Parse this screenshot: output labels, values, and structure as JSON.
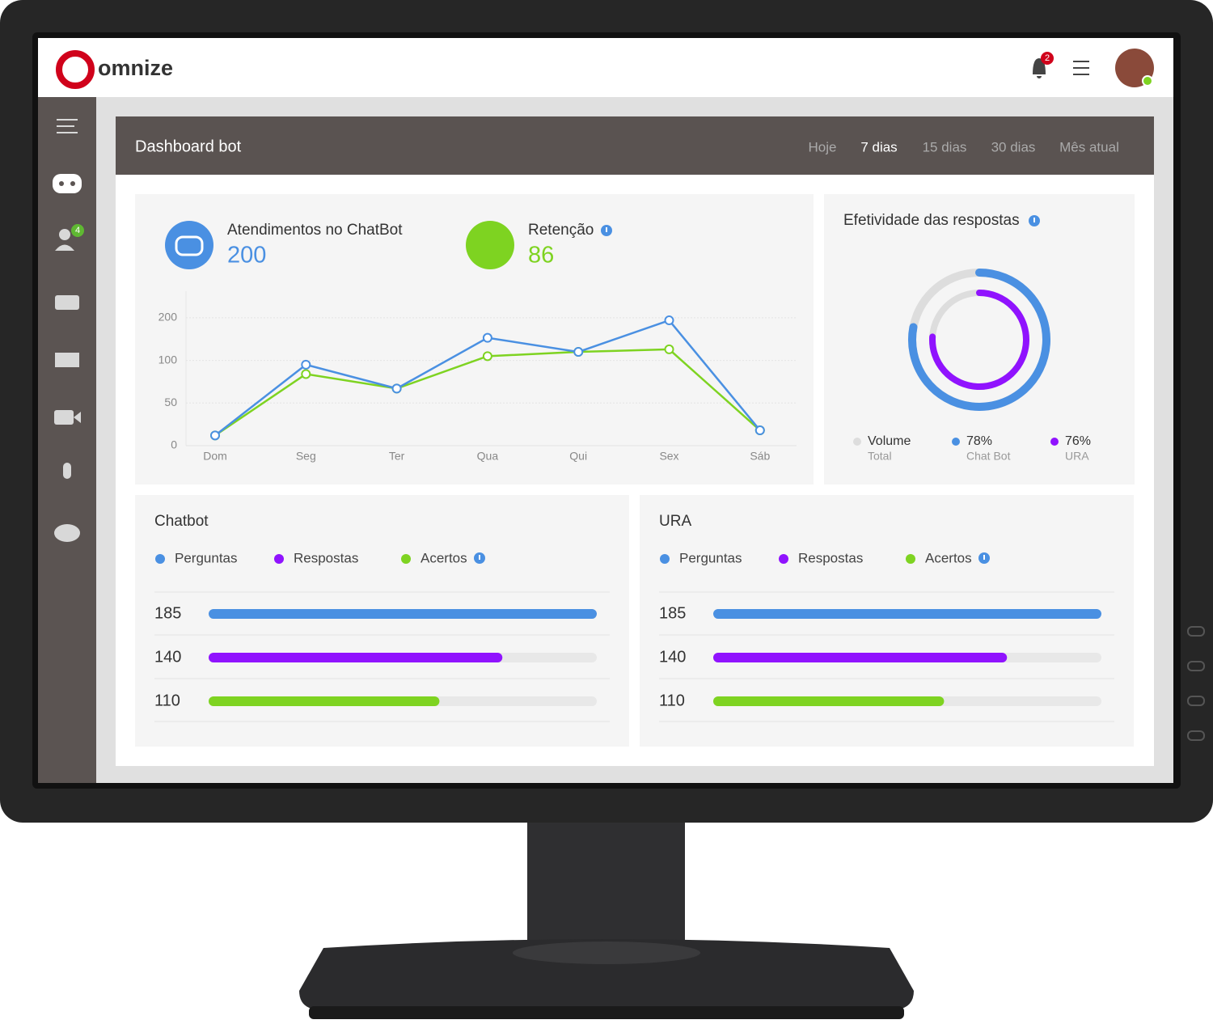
{
  "header": {
    "brand": "omnize",
    "notification_count": 2,
    "sidebar_badge": 4
  },
  "dashboard": {
    "title": "Dashboard bot",
    "periods": [
      "Hoje",
      "7 dias",
      "15 dias",
      "30 dias",
      "Mês atual"
    ],
    "active_period": 1
  },
  "kpis": [
    {
      "label": "Atendimentos no ChatBot",
      "value": 200,
      "color": "#4a90e2"
    },
    {
      "label": "Retenção",
      "value": 86,
      "color": "#7ed321"
    }
  ],
  "line_chart": {
    "type": "line",
    "categories": [
      "Dom",
      "Seg",
      "Ter",
      "Qua",
      "Qui",
      "Sex",
      "Sáb"
    ],
    "series": [
      {
        "color": "#4a90e2",
        "values": [
          12,
          95,
          67,
          153,
          120,
          194,
          18
        ]
      },
      {
        "color": "#7ed321",
        "values": [
          12,
          84,
          67,
          110,
          120,
          126,
          18
        ]
      }
    ],
    "ylim": [
      0,
      200
    ],
    "yticks": [
      0,
      50,
      100,
      200
    ],
    "grid": true
  },
  "donut": {
    "type": "donut",
    "title": "Efetividade das respostas",
    "lim": [
      0,
      100
    ],
    "items": [
      {
        "name": "Volume",
        "caption": "Total",
        "color": "#dddddd"
      },
      {
        "value": 78,
        "value_label": "78%",
        "caption": "Chat Bot",
        "color": "#4a90e2"
      },
      {
        "value": 76,
        "value_label": "76%",
        "caption": "URA",
        "color": "#9013fe"
      }
    ]
  },
  "panels": [
    {
      "title": "Chatbot",
      "legend": [
        {
          "name": "Perguntas",
          "color": "#4a90e2"
        },
        {
          "name": "Respostas",
          "color": "#9013fe"
        },
        {
          "name": "Acertos",
          "color": "#7ed321"
        }
      ],
      "values": [
        185,
        140,
        110
      ],
      "xlim": [
        0,
        185
      ]
    },
    {
      "title": "URA",
      "legend": [
        {
          "name": "Perguntas",
          "color": "#4a90e2"
        },
        {
          "name": "Respostas",
          "color": "#9013fe"
        },
        {
          "name": "Acertos",
          "color": "#7ed321"
        }
      ],
      "values": [
        185,
        140,
        110
      ],
      "xlim": [
        0,
        185
      ]
    }
  ]
}
